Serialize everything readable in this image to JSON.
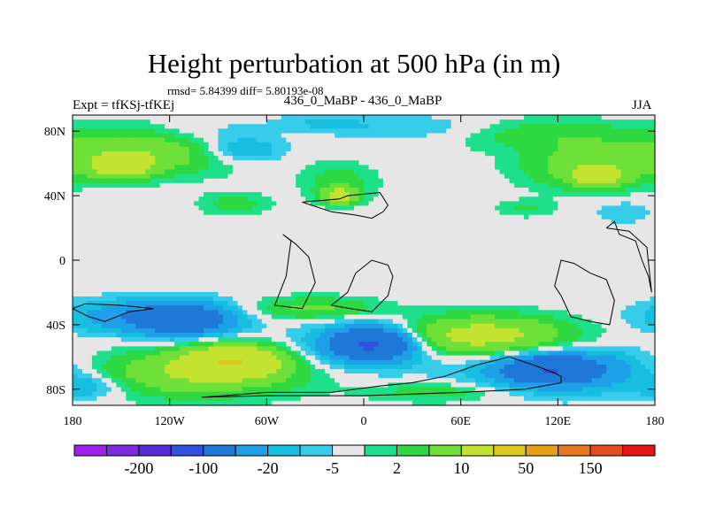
{
  "header": {
    "title": "Height perturbation at 500 hPa (in m)",
    "stats": "rmsd= 5.84399 diff= 5.80193e-08",
    "left_label": "Expt = tfKSj-tfKEj",
    "center_label": "436_0_MaBP - 436_0_MaBP",
    "right_label": "JJA"
  },
  "chart_data": {
    "type": "heatmap",
    "title": "Height perturbation at 500 hPa (in m)",
    "xlabel": "",
    "ylabel": "",
    "xlim": [
      -180,
      180
    ],
    "ylim": [
      -90,
      90
    ],
    "x_ticks": [
      {
        "value": -180,
        "label": "180"
      },
      {
        "value": -120,
        "label": "120W"
      },
      {
        "value": -60,
        "label": "60W"
      },
      {
        "value": 0,
        "label": "0"
      },
      {
        "value": 60,
        "label": "60E"
      },
      {
        "value": 120,
        "label": "120E"
      },
      {
        "value": 180,
        "label": "180"
      }
    ],
    "y_ticks": [
      {
        "value": 80,
        "label": "80N"
      },
      {
        "value": 40,
        "label": "40N"
      },
      {
        "value": 0,
        "label": "0"
      },
      {
        "value": -40,
        "label": "40S"
      },
      {
        "value": -80,
        "label": "80S"
      }
    ],
    "colorbar": {
      "levels": [
        -200,
        -150,
        -100,
        -50,
        -20,
        -10,
        -5,
        -2,
        2,
        5,
        10,
        20,
        50,
        100,
        150,
        200
      ],
      "labels": [
        {
          "after_box": 1,
          "text": "-200"
        },
        {
          "after_box": 3,
          "text": "-100"
        },
        {
          "after_box": 5,
          "text": "-20"
        },
        {
          "after_box": 7,
          "text": "-5"
        },
        {
          "after_box": 9,
          "text": "2"
        },
        {
          "after_box": 11,
          "text": "10"
        },
        {
          "after_box": 13,
          "text": "50"
        },
        {
          "after_box": 15,
          "text": "150"
        }
      ],
      "colors": [
        "#a020f0",
        "#7b2be0",
        "#5528d8",
        "#3050e0",
        "#1f78d8",
        "#1ea0e8",
        "#18bee0",
        "#37cdea",
        "#e6e6e6",
        "#1fe08a",
        "#2ed840",
        "#6ee038",
        "#c4e230",
        "#dcc81c",
        "#e6a014",
        "#e6781e",
        "#e64b1e",
        "#e61414"
      ]
    },
    "field_blobs": [
      {
        "lon": -135,
        "lat": 68,
        "rlon": 55,
        "rlat": 14,
        "value": 18
      },
      {
        "lon": -150,
        "lat": 58,
        "rlon": 18,
        "rlat": 7,
        "value": 28
      },
      {
        "lon": -100,
        "lat": 78,
        "rlon": 40,
        "rlat": 10,
        "value": -6
      },
      {
        "lon": -75,
        "lat": 68,
        "rlon": 25,
        "rlat": 8,
        "value": -12
      },
      {
        "lon": -25,
        "lat": 85,
        "rlon": 30,
        "rlat": 6,
        "value": -5
      },
      {
        "lon": 35,
        "lat": 82,
        "rlon": 50,
        "rlat": 8,
        "value": -5
      },
      {
        "lon": 110,
        "lat": 78,
        "rlon": 55,
        "rlat": 10,
        "value": 8
      },
      {
        "lon": 140,
        "lat": 58,
        "rlon": 40,
        "rlat": 14,
        "value": 15
      },
      {
        "lon": 145,
        "lat": 52,
        "rlon": 15,
        "rlat": 6,
        "value": 25
      },
      {
        "lon": -80,
        "lat": 35,
        "rlon": 22,
        "rlat": 7,
        "value": 7
      },
      {
        "lon": -15,
        "lat": 48,
        "rlon": 22,
        "rlat": 12,
        "value": 8
      },
      {
        "lon": -15,
        "lat": 40,
        "rlon": 10,
        "rlat": 5,
        "value": 25
      },
      {
        "lon": 100,
        "lat": 32,
        "rlon": 18,
        "rlat": 5,
        "value": 6
      },
      {
        "lon": 160,
        "lat": 30,
        "rlon": 18,
        "rlat": 7,
        "value": -5
      },
      {
        "lon": -140,
        "lat": -35,
        "rlon": 45,
        "rlat": 10,
        "value": -16
      },
      {
        "lon": -110,
        "lat": -37,
        "rlon": 30,
        "rlat": 10,
        "value": -30
      },
      {
        "lon": 5,
        "lat": -52,
        "rlon": 40,
        "rlat": 14,
        "value": -20
      },
      {
        "lon": 5,
        "lat": -52,
        "rlon": 22,
        "rlat": 9,
        "value": -40
      },
      {
        "lon": -30,
        "lat": -30,
        "rlon": 40,
        "rlat": 7,
        "value": 12
      },
      {
        "lon": 70,
        "lat": -47,
        "rlon": 55,
        "rlat": 12,
        "value": 28
      },
      {
        "lon": 125,
        "lat": -68,
        "rlon": 55,
        "rlat": 14,
        "value": -18
      },
      {
        "lon": 115,
        "lat": -68,
        "rlon": 28,
        "rlat": 8,
        "value": -35
      },
      {
        "lon": -105,
        "lat": -70,
        "rlon": 65,
        "rlat": 14,
        "value": 20
      },
      {
        "lon": -80,
        "lat": -62,
        "rlon": 28,
        "rlat": 9,
        "value": 40
      },
      {
        "lon": -170,
        "lat": -78,
        "rlon": 25,
        "rlat": 8,
        "value": -10
      },
      {
        "lon": 45,
        "lat": -82,
        "rlon": 40,
        "rlat": 6,
        "value": 8
      }
    ],
    "land_outline_lonlat": [
      [
        [
          -38,
          36
        ],
        [
          -15,
          38
        ],
        [
          -10,
          40
        ],
        [
          10,
          42
        ],
        [
          15,
          34
        ],
        [
          12,
          30
        ],
        [
          5,
          26
        ],
        [
          -5,
          28
        ],
        [
          -20,
          30
        ],
        [
          -38,
          36
        ]
      ],
      [
        [
          -50,
          16
        ],
        [
          -45,
          12
        ],
        [
          -48,
          -10
        ],
        [
          -55,
          -28
        ],
        [
          -38,
          -30
        ],
        [
          -30,
          -14
        ],
        [
          -34,
          2
        ],
        [
          -42,
          10
        ],
        [
          -50,
          16
        ]
      ],
      [
        [
          -5,
          -8
        ],
        [
          5,
          0
        ],
        [
          15,
          -3
        ],
        [
          18,
          -10
        ],
        [
          15,
          -22
        ],
        [
          5,
          -32
        ],
        [
          -8,
          -30
        ],
        [
          -20,
          -28
        ],
        [
          -10,
          -20
        ],
        [
          -5,
          -8
        ]
      ],
      [
        [
          118,
          -16
        ],
        [
          122,
          -22
        ],
        [
          128,
          -35
        ],
        [
          140,
          -38
        ],
        [
          152,
          -40
        ],
        [
          155,
          -25
        ],
        [
          150,
          -12
        ],
        [
          140,
          -8
        ],
        [
          130,
          -2
        ],
        [
          122,
          0
        ],
        [
          118,
          -16
        ]
      ],
      [
        [
          150,
          20
        ],
        [
          155,
          24
        ],
        [
          158,
          16
        ],
        [
          168,
          12
        ],
        [
          172,
          0
        ],
        [
          176,
          -10
        ],
        [
          178,
          -20
        ],
        [
          175,
          8
        ],
        [
          164,
          18
        ],
        [
          150,
          20
        ]
      ],
      [
        [
          -180,
          -30
        ],
        [
          -170,
          -35
        ],
        [
          -160,
          -38
        ],
        [
          -145,
          -32
        ],
        [
          -130,
          -30
        ],
        [
          -150,
          -28
        ],
        [
          -172,
          -27
        ],
        [
          -180,
          -30
        ]
      ],
      [
        [
          -100,
          -85
        ],
        [
          -60,
          -82
        ],
        [
          -20,
          -82
        ],
        [
          10,
          -78
        ],
        [
          30,
          -76
        ],
        [
          50,
          -72
        ],
        [
          70,
          -65
        ],
        [
          90,
          -60
        ],
        [
          105,
          -65
        ],
        [
          118,
          -70
        ],
        [
          122,
          -72
        ],
        [
          122,
          -76
        ],
        [
          100,
          -80
        ],
        [
          60,
          -82
        ],
        [
          0,
          -84
        ],
        [
          -60,
          -84
        ],
        [
          -100,
          -85
        ]
      ]
    ]
  }
}
